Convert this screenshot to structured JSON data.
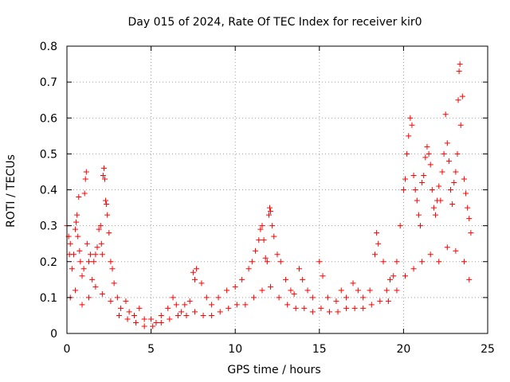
{
  "chart_data": {
    "type": "scatter",
    "title": "Day 015 of 2024, Rate Of TEC Index for receiver kir0",
    "xlabel": "GPS time / hours",
    "ylabel": "ROTI / TECUs",
    "xlim": [
      0,
      25
    ],
    "ylim": [
      0,
      0.8
    ],
    "xticks": [
      0,
      5,
      10,
      15,
      20,
      25
    ],
    "xtick_labels": [
      "0",
      "5",
      "10",
      "15",
      "20",
      "25"
    ],
    "yticks": [
      0,
      0.1,
      0.2,
      0.3,
      0.4,
      0.5,
      0.6,
      0.7,
      0.8
    ],
    "ytick_labels": [
      "0",
      "0.1",
      "0.2",
      "0.3",
      "0.4",
      "0.5",
      "0.6",
      "0.7",
      "0.8"
    ],
    "grid": true,
    "marker": "+",
    "color": "#ff0000",
    "series": [
      {
        "name": "ROTI",
        "points": [
          [
            0.0,
            0.3
          ],
          [
            0.1,
            0.27
          ],
          [
            0.15,
            0.22
          ],
          [
            0.2,
            0.25
          ],
          [
            0.3,
            0.18
          ],
          [
            0.4,
            0.22
          ],
          [
            0.5,
            0.29
          ],
          [
            0.55,
            0.31
          ],
          [
            0.6,
            0.33
          ],
          [
            0.65,
            0.27
          ],
          [
            0.7,
            0.38
          ],
          [
            0.75,
            0.23
          ],
          [
            0.8,
            0.2
          ],
          [
            0.9,
            0.16
          ],
          [
            1.0,
            0.18
          ],
          [
            1.05,
            0.39
          ],
          [
            1.1,
            0.43
          ],
          [
            1.15,
            0.45
          ],
          [
            1.2,
            0.25
          ],
          [
            1.3,
            0.2
          ],
          [
            1.4,
            0.22
          ],
          [
            1.5,
            0.15
          ],
          [
            1.6,
            0.2
          ],
          [
            1.7,
            0.22
          ],
          [
            1.8,
            0.24
          ],
          [
            1.9,
            0.29
          ],
          [
            2.0,
            0.3
          ],
          [
            2.05,
            0.25
          ],
          [
            2.1,
            0.22
          ],
          [
            2.15,
            0.44
          ],
          [
            2.2,
            0.46
          ],
          [
            2.25,
            0.43
          ],
          [
            2.3,
            0.37
          ],
          [
            2.35,
            0.36
          ],
          [
            2.4,
            0.33
          ],
          [
            2.5,
            0.28
          ],
          [
            2.6,
            0.2
          ],
          [
            2.7,
            0.18
          ],
          [
            2.8,
            0.14
          ],
          [
            3.0,
            0.1
          ],
          [
            3.2,
            0.07
          ],
          [
            3.5,
            0.09
          ],
          [
            3.7,
            0.06
          ],
          [
            4.0,
            0.05
          ],
          [
            4.3,
            0.07
          ],
          [
            4.6,
            0.04
          ],
          [
            5.0,
            0.04
          ],
          [
            5.3,
            0.03
          ],
          [
            5.6,
            0.05
          ],
          [
            6.0,
            0.07
          ],
          [
            6.3,
            0.1
          ],
          [
            6.5,
            0.08
          ],
          [
            6.8,
            0.06
          ],
          [
            7.0,
            0.08
          ],
          [
            7.3,
            0.09
          ],
          [
            7.5,
            0.17
          ],
          [
            7.6,
            0.15
          ],
          [
            7.7,
            0.18
          ],
          [
            8.0,
            0.14
          ],
          [
            8.3,
            0.1
          ],
          [
            8.6,
            0.08
          ],
          [
            9.0,
            0.1
          ],
          [
            9.5,
            0.12
          ],
          [
            10.0,
            0.13
          ],
          [
            10.4,
            0.15
          ],
          [
            10.8,
            0.18
          ],
          [
            11.0,
            0.2
          ],
          [
            11.2,
            0.23
          ],
          [
            11.4,
            0.26
          ],
          [
            11.5,
            0.29
          ],
          [
            11.6,
            0.3
          ],
          [
            11.7,
            0.26
          ],
          [
            11.8,
            0.21
          ],
          [
            11.9,
            0.2
          ],
          [
            12.0,
            0.33
          ],
          [
            12.05,
            0.35
          ],
          [
            12.1,
            0.34
          ],
          [
            12.2,
            0.3
          ],
          [
            12.3,
            0.27
          ],
          [
            12.5,
            0.22
          ],
          [
            12.7,
            0.2
          ],
          [
            13.0,
            0.15
          ],
          [
            13.3,
            0.12
          ],
          [
            13.5,
            0.11
          ],
          [
            13.8,
            0.18
          ],
          [
            14.0,
            0.15
          ],
          [
            14.3,
            0.12
          ],
          [
            14.6,
            0.1
          ],
          [
            15.0,
            0.2
          ],
          [
            15.2,
            0.16
          ],
          [
            15.5,
            0.1
          ],
          [
            16.0,
            0.09
          ],
          [
            16.3,
            0.12
          ],
          [
            16.6,
            0.1
          ],
          [
            17.0,
            0.14
          ],
          [
            17.3,
            0.12
          ],
          [
            17.6,
            0.1
          ],
          [
            18.0,
            0.12
          ],
          [
            18.3,
            0.22
          ],
          [
            18.4,
            0.28
          ],
          [
            18.5,
            0.25
          ],
          [
            18.8,
            0.2
          ],
          [
            19.0,
            0.12
          ],
          [
            19.2,
            0.15
          ],
          [
            19.4,
            0.16
          ],
          [
            19.6,
            0.2
          ],
          [
            19.8,
            0.3
          ],
          [
            20.0,
            0.4
          ],
          [
            20.1,
            0.43
          ],
          [
            20.2,
            0.5
          ],
          [
            20.3,
            0.55
          ],
          [
            20.4,
            0.6
          ],
          [
            20.5,
            0.58
          ],
          [
            20.6,
            0.44
          ],
          [
            20.7,
            0.4
          ],
          [
            20.8,
            0.37
          ],
          [
            20.9,
            0.33
          ],
          [
            21.0,
            0.3
          ],
          [
            21.1,
            0.42
          ],
          [
            21.2,
            0.44
          ],
          [
            21.3,
            0.49
          ],
          [
            21.4,
            0.52
          ],
          [
            21.5,
            0.5
          ],
          [
            21.6,
            0.47
          ],
          [
            21.7,
            0.4
          ],
          [
            21.8,
            0.35
          ],
          [
            21.9,
            0.33
          ],
          [
            22.0,
            0.37
          ],
          [
            22.1,
            0.41
          ],
          [
            22.2,
            0.37
          ],
          [
            22.3,
            0.45
          ],
          [
            22.4,
            0.5
          ],
          [
            22.5,
            0.61
          ],
          [
            22.6,
            0.53
          ],
          [
            22.7,
            0.48
          ],
          [
            22.8,
            0.4
          ],
          [
            22.9,
            0.36
          ],
          [
            23.0,
            0.42
          ],
          [
            23.1,
            0.45
          ],
          [
            23.2,
            0.5
          ],
          [
            23.25,
            0.65
          ],
          [
            23.3,
            0.73
          ],
          [
            23.35,
            0.75
          ],
          [
            23.4,
            0.58
          ],
          [
            23.5,
            0.66
          ],
          [
            23.6,
            0.43
          ],
          [
            23.7,
            0.39
          ],
          [
            23.8,
            0.35
          ],
          [
            23.9,
            0.32
          ],
          [
            24.0,
            0.28
          ],
          [
            0.2,
            0.1
          ],
          [
            0.5,
            0.12
          ],
          [
            0.9,
            0.08
          ],
          [
            1.3,
            0.1
          ],
          [
            1.7,
            0.13
          ],
          [
            2.1,
            0.11
          ],
          [
            2.6,
            0.09
          ],
          [
            3.1,
            0.05
          ],
          [
            3.6,
            0.04
          ],
          [
            4.1,
            0.03
          ],
          [
            4.6,
            0.02
          ],
          [
            5.1,
            0.02
          ],
          [
            5.6,
            0.03
          ],
          [
            6.1,
            0.04
          ],
          [
            6.6,
            0.05
          ],
          [
            7.1,
            0.05
          ],
          [
            7.6,
            0.06
          ],
          [
            8.1,
            0.05
          ],
          [
            8.6,
            0.05
          ],
          [
            9.1,
            0.06
          ],
          [
            9.6,
            0.07
          ],
          [
            10.1,
            0.08
          ],
          [
            10.6,
            0.08
          ],
          [
            11.1,
            0.1
          ],
          [
            11.6,
            0.12
          ],
          [
            12.1,
            0.13
          ],
          [
            12.6,
            0.1
          ],
          [
            13.1,
            0.08
          ],
          [
            13.6,
            0.07
          ],
          [
            14.1,
            0.07
          ],
          [
            14.6,
            0.06
          ],
          [
            15.1,
            0.07
          ],
          [
            15.6,
            0.06
          ],
          [
            16.1,
            0.06
          ],
          [
            16.6,
            0.07
          ],
          [
            17.1,
            0.07
          ],
          [
            17.6,
            0.07
          ],
          [
            18.1,
            0.08
          ],
          [
            18.6,
            0.09
          ],
          [
            19.1,
            0.09
          ],
          [
            19.6,
            0.12
          ],
          [
            20.1,
            0.16
          ],
          [
            20.6,
            0.18
          ],
          [
            21.1,
            0.2
          ],
          [
            21.6,
            0.22
          ],
          [
            22.1,
            0.2
          ],
          [
            22.6,
            0.24
          ],
          [
            23.1,
            0.23
          ],
          [
            23.6,
            0.2
          ],
          [
            23.9,
            0.15
          ]
        ]
      }
    ]
  }
}
